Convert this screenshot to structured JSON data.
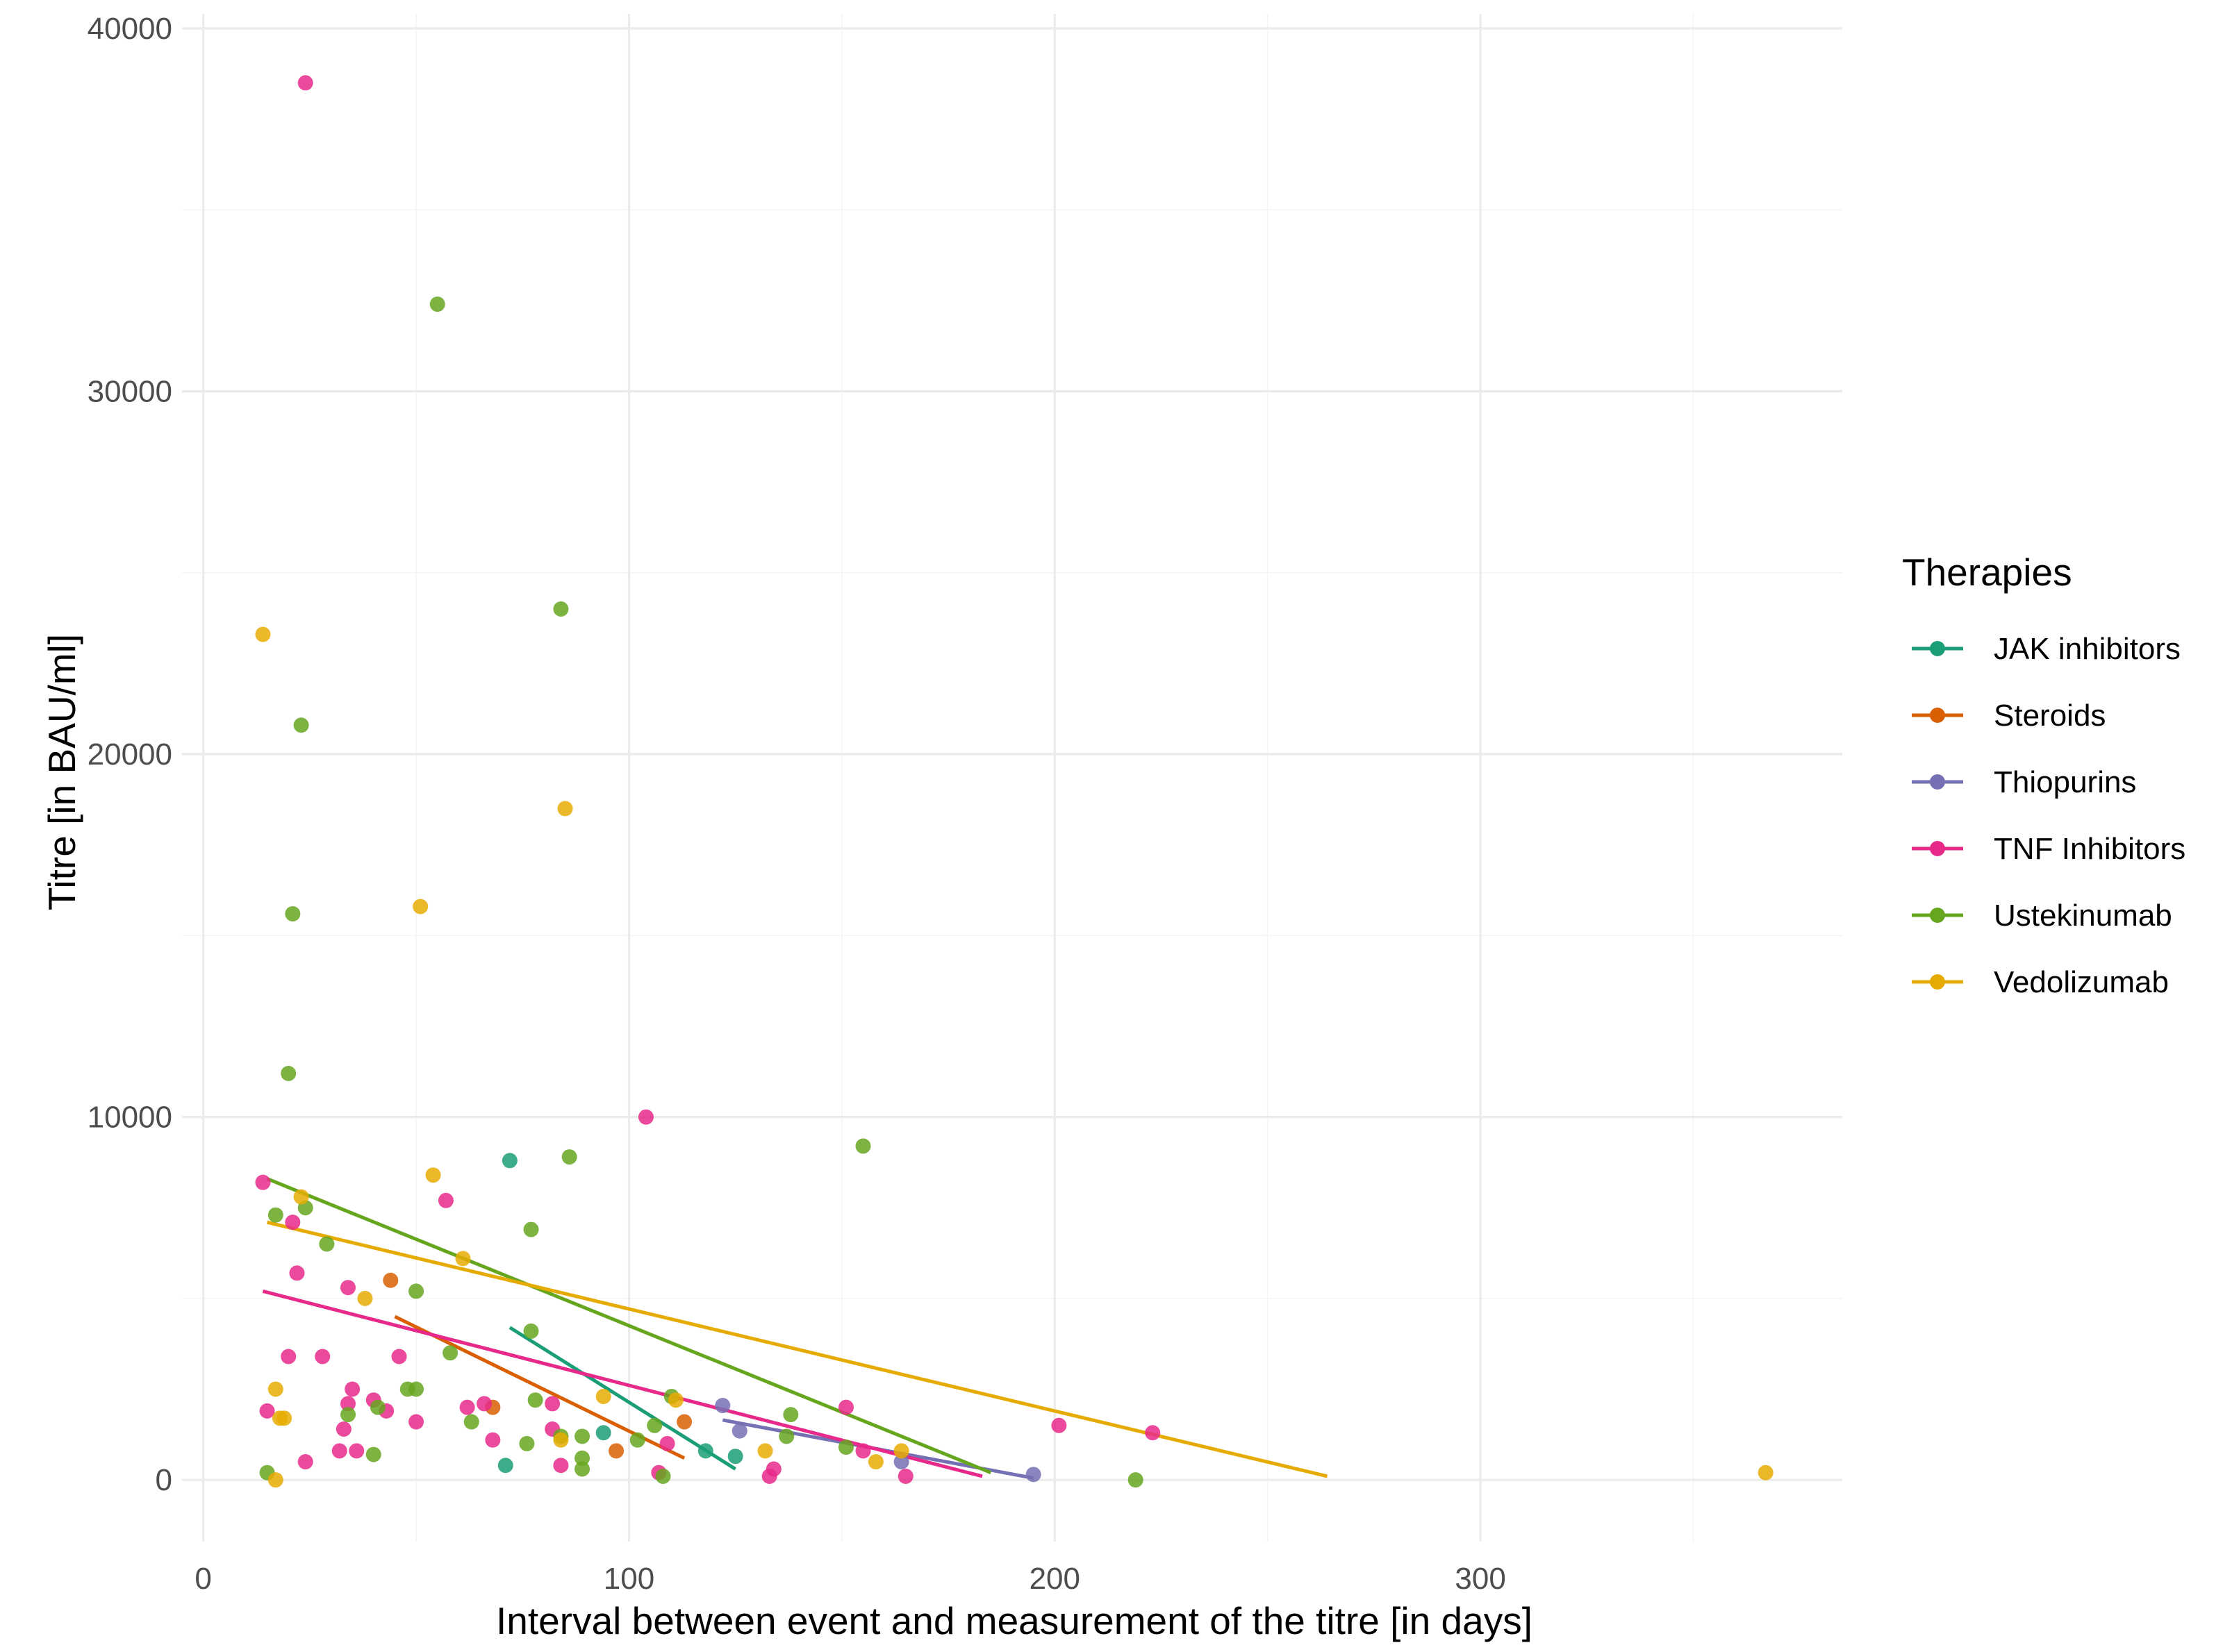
{
  "chart_data": {
    "type": "scatter",
    "title": "",
    "xlabel": "Interval between event and measurement of the titre [in days]",
    "ylabel": "Titre [in BAU/ml]",
    "xlim": [
      -5,
      385
    ],
    "ylim": [
      -1700,
      40400
    ],
    "x_ticks": [
      0,
      100,
      200,
      300
    ],
    "y_ticks": [
      0,
      10000,
      20000,
      30000,
      40000
    ],
    "x_tick_labels": [
      "0",
      "100",
      "200",
      "300"
    ],
    "y_tick_labels": [
      "0",
      "10000",
      "20000",
      "30000",
      "40000"
    ],
    "grid": true,
    "legend": {
      "title": "Therapies",
      "position": "right"
    },
    "series": [
      {
        "name": "JAK inhibitors",
        "color": "#1b9e77",
        "points": [
          [
            72,
            8800
          ],
          [
            71,
            400
          ],
          [
            94,
            1300
          ],
          [
            118,
            800
          ],
          [
            125,
            650
          ]
        ],
        "trend": [
          [
            72,
            4200
          ],
          [
            125,
            300
          ]
        ]
      },
      {
        "name": "Steroids",
        "color": "#d95f02",
        "points": [
          [
            44,
            5500
          ],
          [
            68,
            2000
          ],
          [
            97,
            800
          ],
          [
            113,
            1600
          ]
        ],
        "trend": [
          [
            45,
            4500
          ],
          [
            113,
            600
          ]
        ]
      },
      {
        "name": "Thiopurins",
        "color": "#7570b3",
        "points": [
          [
            122,
            2050
          ],
          [
            126,
            1350
          ],
          [
            164,
            500
          ],
          [
            195,
            150
          ]
        ],
        "trend": [
          [
            122,
            1650
          ],
          [
            195,
            50
          ]
        ]
      },
      {
        "name": "TNF Inhibitors",
        "color": "#e7298a",
        "points": [
          [
            24,
            38500
          ],
          [
            14,
            8200
          ],
          [
            21,
            7100
          ],
          [
            22,
            5700
          ],
          [
            20,
            3400
          ],
          [
            15,
            1900
          ],
          [
            24,
            500
          ],
          [
            28,
            3400
          ],
          [
            34,
            5300
          ],
          [
            34,
            2100
          ],
          [
            35,
            2500
          ],
          [
            33,
            1400
          ],
          [
            32,
            800
          ],
          [
            36,
            800
          ],
          [
            40,
            2200
          ],
          [
            43,
            1900
          ],
          [
            46,
            3400
          ],
          [
            50,
            1600
          ],
          [
            57,
            7700
          ],
          [
            62,
            2000
          ],
          [
            66,
            2100
          ],
          [
            68,
            1100
          ],
          [
            82,
            2100
          ],
          [
            82,
            1400
          ],
          [
            84,
            400
          ],
          [
            104,
            10000
          ],
          [
            107,
            200
          ],
          [
            109,
            1000
          ],
          [
            133,
            100
          ],
          [
            134,
            300
          ],
          [
            151,
            2000
          ],
          [
            155,
            800
          ],
          [
            165,
            100
          ],
          [
            201,
            1500
          ],
          [
            223,
            1300
          ]
        ],
        "trend": [
          [
            14,
            5200
          ],
          [
            183,
            100
          ]
        ]
      },
      {
        "name": "Ustekinumab",
        "color": "#66a61e",
        "points": [
          [
            55,
            32400
          ],
          [
            84,
            24000
          ],
          [
            23,
            20800
          ],
          [
            21,
            15600
          ],
          [
            20,
            11200
          ],
          [
            86,
            8900
          ],
          [
            155,
            9200
          ],
          [
            24,
            7500
          ],
          [
            17,
            7300
          ],
          [
            77,
            6900
          ],
          [
            29,
            6500
          ],
          [
            50,
            5200
          ],
          [
            58,
            3500
          ],
          [
            77,
            4100
          ],
          [
            34,
            1800
          ],
          [
            40,
            700
          ],
          [
            41,
            2000
          ],
          [
            48,
            2500
          ],
          [
            50,
            2500
          ],
          [
            63,
            1600
          ],
          [
            76,
            1000
          ],
          [
            78,
            2200
          ],
          [
            84,
            1200
          ],
          [
            89,
            1200
          ],
          [
            89,
            600
          ],
          [
            89,
            300
          ],
          [
            102,
            1100
          ],
          [
            106,
            1500
          ],
          [
            108,
            100
          ],
          [
            110,
            2300
          ],
          [
            137,
            1200
          ],
          [
            138,
            1800
          ],
          [
            151,
            900
          ],
          [
            15,
            200
          ],
          [
            219,
            0
          ]
        ],
        "trend": [
          [
            15,
            8300
          ],
          [
            185,
            200
          ]
        ]
      },
      {
        "name": "Vedolizumab",
        "color": "#e6ab02",
        "points": [
          [
            14,
            23300
          ],
          [
            85,
            18500
          ],
          [
            51,
            15800
          ],
          [
            54,
            8400
          ],
          [
            23,
            7800
          ],
          [
            61,
            6100
          ],
          [
            38,
            5000
          ],
          [
            17,
            2500
          ],
          [
            18,
            1700
          ],
          [
            19,
            1700
          ],
          [
            17,
            0
          ],
          [
            84,
            1100
          ],
          [
            94,
            2300
          ],
          [
            111,
            2200
          ],
          [
            132,
            800
          ],
          [
            158,
            500
          ],
          [
            164,
            800
          ],
          [
            367,
            200
          ]
        ],
        "trend": [
          [
            15,
            7100
          ],
          [
            264,
            100
          ]
        ]
      }
    ]
  }
}
